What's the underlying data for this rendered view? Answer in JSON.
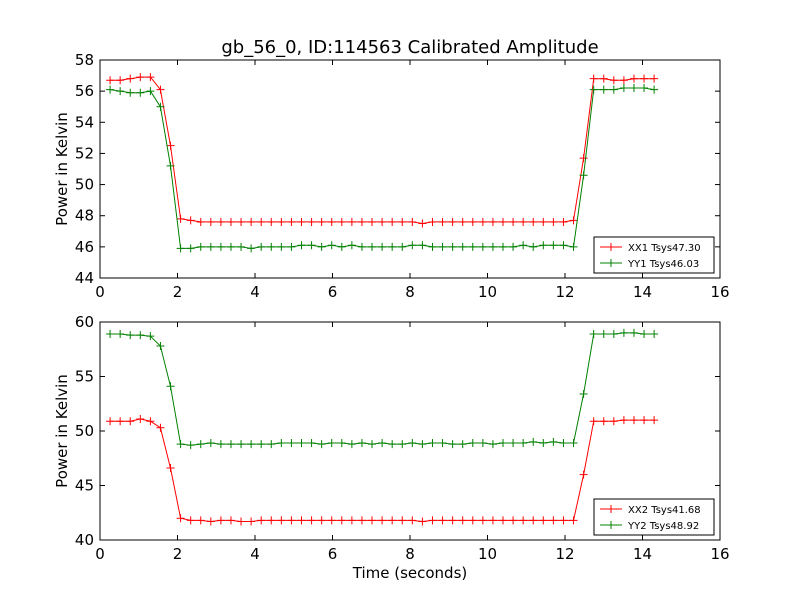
{
  "figure": {
    "title": "gb_56_0, ID:114563 Calibrated Amplitude",
    "xlabel": "Time (seconds)"
  },
  "chart_data": [
    {
      "type": "line",
      "ylabel": "Power in Kelvin",
      "xlabel": "",
      "xlim": [
        0,
        16
      ],
      "ylim": [
        44,
        58
      ],
      "xticks": [
        0,
        2,
        4,
        6,
        8,
        10,
        12,
        14,
        16
      ],
      "yticks": [
        44,
        46,
        48,
        50,
        52,
        54,
        56,
        58
      ],
      "grid": false,
      "legend_position": "lower-right",
      "series": [
        {
          "name": "XX1 Tsys47.30",
          "color": "#ff0000",
          "x": [
            0.26,
            0.52,
            0.78,
            1.04,
            1.3,
            1.56,
            1.82,
            2.08,
            2.34,
            2.6,
            2.86,
            3.12,
            3.38,
            3.64,
            3.9,
            4.16,
            4.42,
            4.68,
            4.94,
            5.2,
            5.46,
            5.72,
            5.98,
            6.24,
            6.5,
            6.76,
            7.02,
            7.28,
            7.54,
            7.8,
            8.06,
            8.32,
            8.58,
            8.84,
            9.1,
            9.36,
            9.62,
            9.88,
            10.14,
            10.4,
            10.66,
            10.92,
            11.18,
            11.44,
            11.7,
            11.96,
            12.22,
            12.48,
            12.74,
            13.0,
            13.26,
            13.52,
            13.78,
            14.04,
            14.3
          ],
          "y": [
            56.7,
            56.7,
            56.8,
            56.9,
            56.9,
            56.1,
            52.5,
            47.8,
            47.7,
            47.6,
            47.6,
            47.6,
            47.6,
            47.6,
            47.6,
            47.6,
            47.6,
            47.6,
            47.6,
            47.6,
            47.6,
            47.6,
            47.6,
            47.6,
            47.6,
            47.6,
            47.6,
            47.6,
            47.6,
            47.6,
            47.6,
            47.5,
            47.6,
            47.6,
            47.6,
            47.6,
            47.6,
            47.6,
            47.6,
            47.6,
            47.6,
            47.6,
            47.6,
            47.6,
            47.6,
            47.6,
            47.7,
            51.7,
            56.8,
            56.8,
            56.7,
            56.7,
            56.8,
            56.8,
            56.8
          ]
        },
        {
          "name": "YY1 Tsys46.03",
          "color": "#008000",
          "x": [
            0.26,
            0.52,
            0.78,
            1.04,
            1.3,
            1.56,
            1.82,
            2.08,
            2.34,
            2.6,
            2.86,
            3.12,
            3.38,
            3.64,
            3.9,
            4.16,
            4.42,
            4.68,
            4.94,
            5.2,
            5.46,
            5.72,
            5.98,
            6.24,
            6.5,
            6.76,
            7.02,
            7.28,
            7.54,
            7.8,
            8.06,
            8.32,
            8.58,
            8.84,
            9.1,
            9.36,
            9.62,
            9.88,
            10.14,
            10.4,
            10.66,
            10.92,
            11.18,
            11.44,
            11.7,
            11.96,
            12.22,
            12.48,
            12.74,
            13.0,
            13.26,
            13.52,
            13.78,
            14.04,
            14.3
          ],
          "y": [
            56.1,
            56.0,
            55.9,
            55.9,
            56.0,
            55.0,
            51.2,
            45.9,
            45.9,
            46.0,
            46.0,
            46.0,
            46.0,
            46.0,
            45.9,
            46.0,
            46.0,
            46.0,
            46.0,
            46.1,
            46.1,
            46.0,
            46.1,
            46.0,
            46.1,
            46.0,
            46.0,
            46.0,
            46.0,
            46.0,
            46.1,
            46.1,
            46.0,
            46.0,
            46.0,
            46.0,
            46.0,
            46.0,
            46.0,
            46.0,
            46.0,
            46.1,
            46.0,
            46.1,
            46.1,
            46.1,
            46.0,
            50.6,
            56.1,
            56.1,
            56.1,
            56.2,
            56.2,
            56.2,
            56.1
          ]
        }
      ]
    },
    {
      "type": "line",
      "ylabel": "Power in Kelvin",
      "xlabel": "Time (seconds)",
      "xlim": [
        0,
        16
      ],
      "ylim": [
        40,
        60
      ],
      "xticks": [
        0,
        2,
        4,
        6,
        8,
        10,
        12,
        14,
        16
      ],
      "yticks": [
        40,
        45,
        50,
        55,
        60
      ],
      "grid": false,
      "legend_position": "lower-right",
      "series": [
        {
          "name": "XX2 Tsys41.68",
          "color": "#ff0000",
          "x": [
            0.26,
            0.52,
            0.78,
            1.04,
            1.3,
            1.56,
            1.82,
            2.08,
            2.34,
            2.6,
            2.86,
            3.12,
            3.38,
            3.64,
            3.9,
            4.16,
            4.42,
            4.68,
            4.94,
            5.2,
            5.46,
            5.72,
            5.98,
            6.24,
            6.5,
            6.76,
            7.02,
            7.28,
            7.54,
            7.8,
            8.06,
            8.32,
            8.58,
            8.84,
            9.1,
            9.36,
            9.62,
            9.88,
            10.14,
            10.4,
            10.66,
            10.92,
            11.18,
            11.44,
            11.7,
            11.96,
            12.22,
            12.48,
            12.74,
            13.0,
            13.26,
            13.52,
            13.78,
            14.04,
            14.3
          ],
          "y": [
            50.9,
            50.9,
            50.9,
            51.1,
            50.9,
            50.3,
            46.6,
            42.0,
            41.8,
            41.8,
            41.7,
            41.8,
            41.8,
            41.7,
            41.7,
            41.8,
            41.8,
            41.8,
            41.8,
            41.8,
            41.8,
            41.8,
            41.8,
            41.8,
            41.8,
            41.8,
            41.8,
            41.8,
            41.8,
            41.8,
            41.8,
            41.7,
            41.8,
            41.8,
            41.8,
            41.8,
            41.8,
            41.8,
            41.8,
            41.8,
            41.8,
            41.8,
            41.8,
            41.8,
            41.8,
            41.8,
            41.8,
            46.0,
            50.9,
            50.9,
            50.9,
            51.0,
            51.0,
            51.0,
            51.0
          ]
        },
        {
          "name": "YY2 Tsys48.92",
          "color": "#008000",
          "x": [
            0.26,
            0.52,
            0.78,
            1.04,
            1.3,
            1.56,
            1.82,
            2.08,
            2.34,
            2.6,
            2.86,
            3.12,
            3.38,
            3.64,
            3.9,
            4.16,
            4.42,
            4.68,
            4.94,
            5.2,
            5.46,
            5.72,
            5.98,
            6.24,
            6.5,
            6.76,
            7.02,
            7.28,
            7.54,
            7.8,
            8.06,
            8.32,
            8.58,
            8.84,
            9.1,
            9.36,
            9.62,
            9.88,
            10.14,
            10.4,
            10.66,
            10.92,
            11.18,
            11.44,
            11.7,
            11.96,
            12.22,
            12.48,
            12.74,
            13.0,
            13.26,
            13.52,
            13.78,
            14.04,
            14.3
          ],
          "y": [
            58.9,
            58.9,
            58.8,
            58.8,
            58.7,
            57.8,
            54.1,
            48.8,
            48.7,
            48.8,
            48.9,
            48.8,
            48.8,
            48.8,
            48.8,
            48.8,
            48.8,
            48.9,
            48.9,
            48.9,
            48.9,
            48.8,
            48.9,
            48.9,
            48.8,
            48.9,
            48.8,
            48.9,
            48.8,
            48.8,
            48.9,
            48.8,
            48.9,
            48.9,
            48.8,
            48.8,
            48.9,
            48.9,
            48.8,
            48.9,
            48.9,
            48.9,
            49.0,
            48.9,
            49.0,
            48.9,
            48.9,
            53.4,
            58.9,
            58.9,
            58.9,
            59.0,
            59.0,
            58.9,
            58.9
          ]
        }
      ]
    }
  ]
}
